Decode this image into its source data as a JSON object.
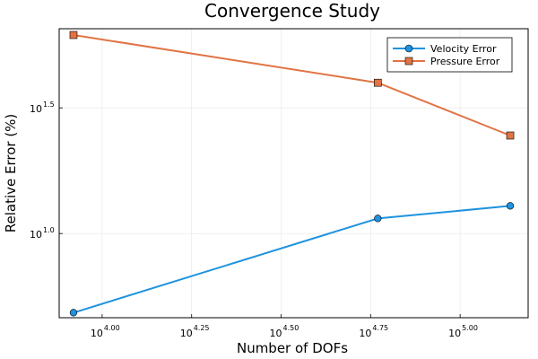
{
  "chart_data": {
    "type": "line",
    "title": "Convergence Study",
    "xlabel": "Number of DOFs",
    "ylabel": "Relative Error (%)",
    "xscale": "log10",
    "yscale": "log10",
    "xlim_exponent": [
      3.88,
      5.19
    ],
    "ylim_exponent": [
      0.665,
      1.815
    ],
    "x_ticks": [
      {
        "base": "10",
        "exp": "4.00",
        "value": 4.0
      },
      {
        "base": "10",
        "exp": "4.25",
        "value": 4.25
      },
      {
        "base": "10",
        "exp": "4.50",
        "value": 4.5
      },
      {
        "base": "10",
        "exp": "4.75",
        "value": 4.75
      },
      {
        "base": "10",
        "exp": "5.00",
        "value": 5.0
      }
    ],
    "y_ticks": [
      {
        "base": "10",
        "exp": "1.0",
        "value": 1.0
      },
      {
        "base": "10",
        "exp": "1.5",
        "value": 1.5
      }
    ],
    "grid": true,
    "legend_position": "top-right",
    "x_exponents": [
      3.92,
      4.77,
      5.14
    ],
    "series": [
      {
        "name": "Velocity Error",
        "color": "#1f93df",
        "marker": "circle",
        "y_exponents": [
          0.685,
          1.06,
          1.11
        ]
      },
      {
        "name": "Pressure Error",
        "color": "#e07444",
        "marker": "square",
        "y_exponents": [
          1.79,
          1.6,
          1.39
        ]
      }
    ]
  }
}
